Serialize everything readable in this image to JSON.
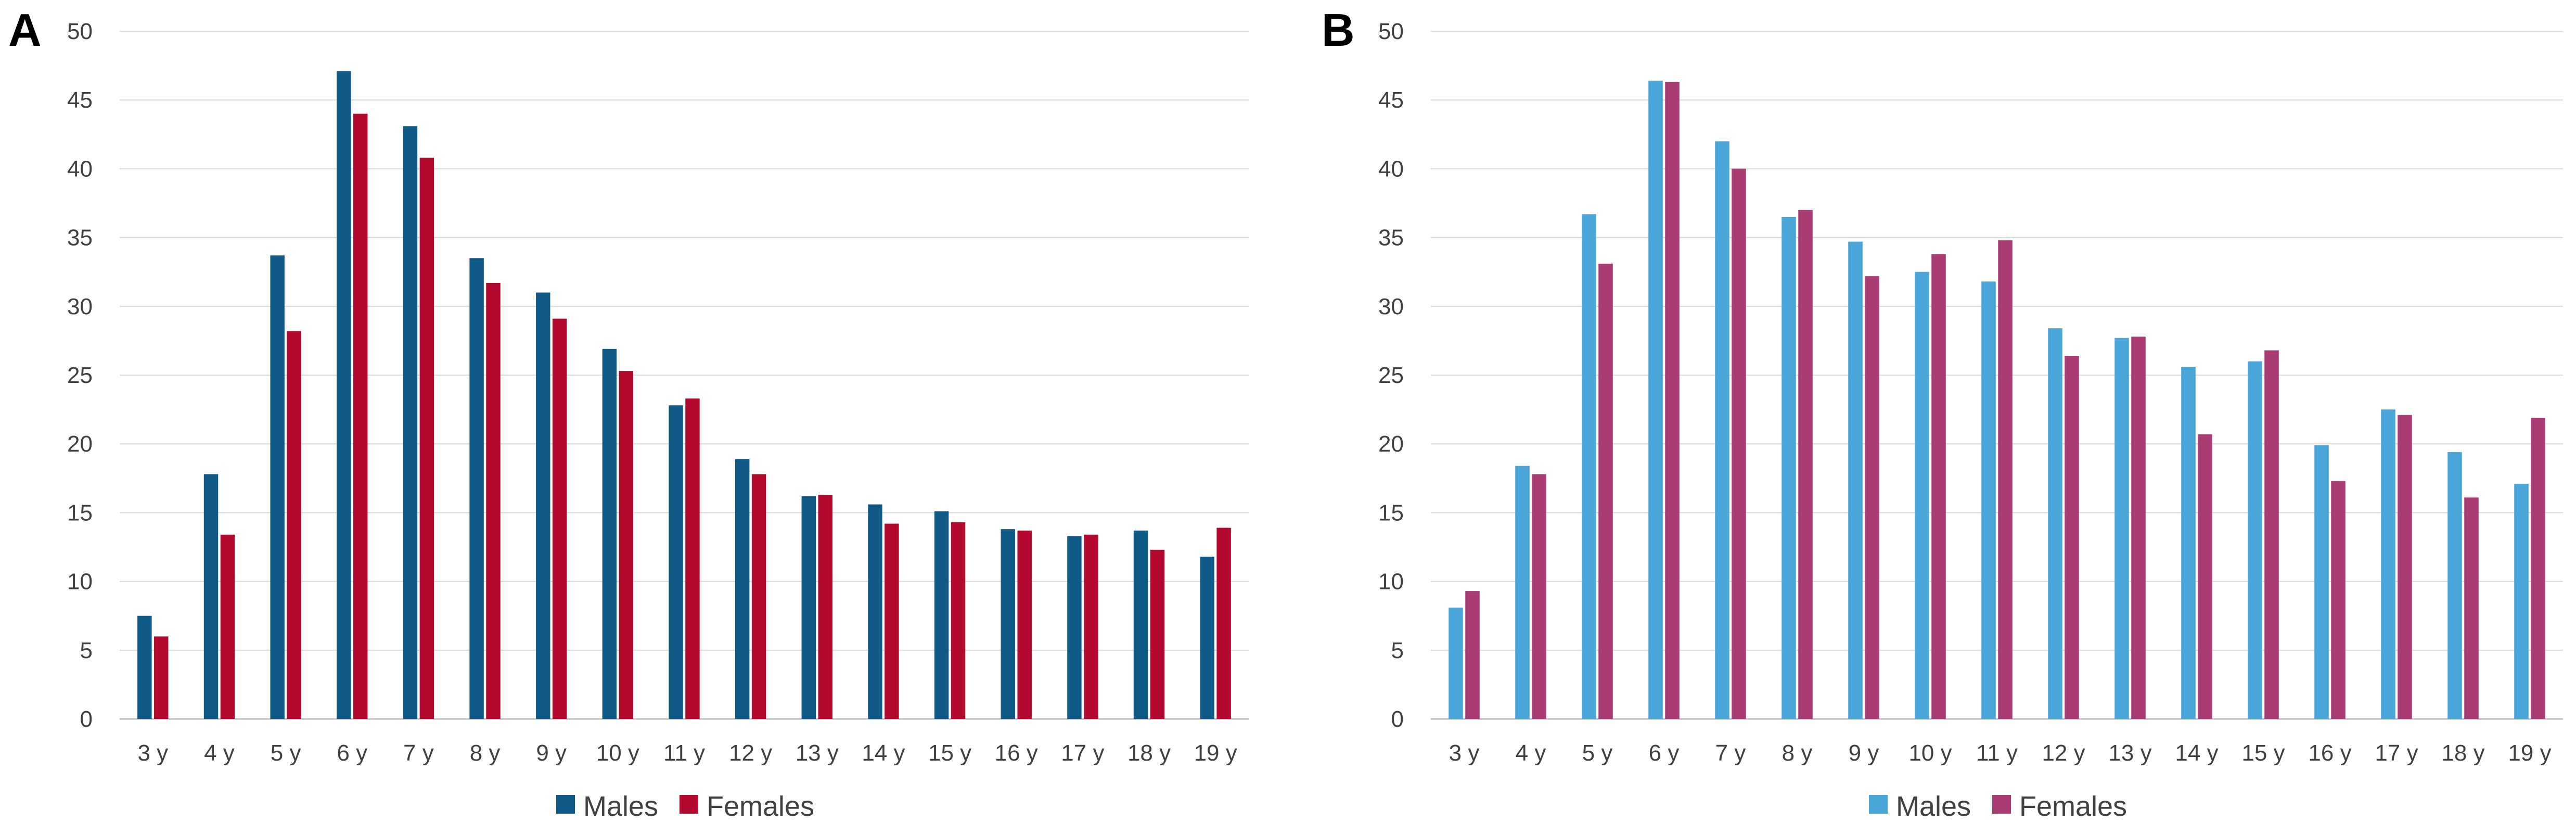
{
  "chart_data": [
    {
      "panel": "A",
      "type": "bar",
      "title": "",
      "xlabel": "",
      "ylabel": "",
      "ylim": [
        0,
        50
      ],
      "yticks": [
        0,
        5,
        10,
        15,
        20,
        25,
        30,
        35,
        40,
        45,
        50
      ],
      "grid": true,
      "legend_position": "bottom",
      "categories": [
        "3 y",
        "4 y",
        "5 y",
        "6 y",
        "7 y",
        "8 y",
        "9 y",
        "10 y",
        "11 y",
        "12 y",
        "13 y",
        "14 y",
        "15 y",
        "16 y",
        "17 y",
        "18 y",
        "19 y"
      ],
      "series": [
        {
          "name": "Males",
          "color": "#0f5a87",
          "values": [
            7.5,
            17.8,
            33.7,
            47.1,
            43.1,
            33.5,
            31.0,
            26.9,
            22.8,
            18.9,
            16.2,
            15.6,
            15.1,
            13.8,
            13.3,
            13.7,
            11.8
          ]
        },
        {
          "name": "Females",
          "color": "#b3092e",
          "values": [
            6.0,
            13.4,
            28.2,
            44.0,
            40.8,
            31.7,
            29.1,
            25.3,
            23.3,
            17.8,
            16.3,
            14.2,
            14.3,
            13.7,
            13.4,
            12.3,
            13.9
          ]
        }
      ]
    },
    {
      "panel": "B",
      "type": "bar",
      "title": "",
      "xlabel": "",
      "ylabel": "",
      "ylim": [
        0,
        50
      ],
      "yticks": [
        0,
        5,
        10,
        15,
        20,
        25,
        30,
        35,
        40,
        45,
        50
      ],
      "grid": true,
      "legend_position": "bottom",
      "categories": [
        "3 y",
        "4 y",
        "5 y",
        "6 y",
        "7 y",
        "8 y",
        "9 y",
        "10 y",
        "11 y",
        "12 y",
        "13 y",
        "14 y",
        "15 y",
        "16 y",
        "17 y",
        "18 y",
        "19 y"
      ],
      "series": [
        {
          "name": "Males",
          "color": "#4aa6d8",
          "values": [
            8.1,
            18.4,
            36.7,
            46.4,
            42.0,
            36.5,
            34.7,
            32.5,
            31.8,
            28.4,
            27.7,
            25.6,
            26.0,
            19.9,
            22.5,
            19.4,
            17.1
          ]
        },
        {
          "name": "Females",
          "color": "#ab3b73",
          "values": [
            9.3,
            17.8,
            33.1,
            46.3,
            40.0,
            37.0,
            32.2,
            33.8,
            34.8,
            26.4,
            27.8,
            20.7,
            26.8,
            17.3,
            22.1,
            16.1,
            21.9
          ]
        }
      ]
    }
  ]
}
